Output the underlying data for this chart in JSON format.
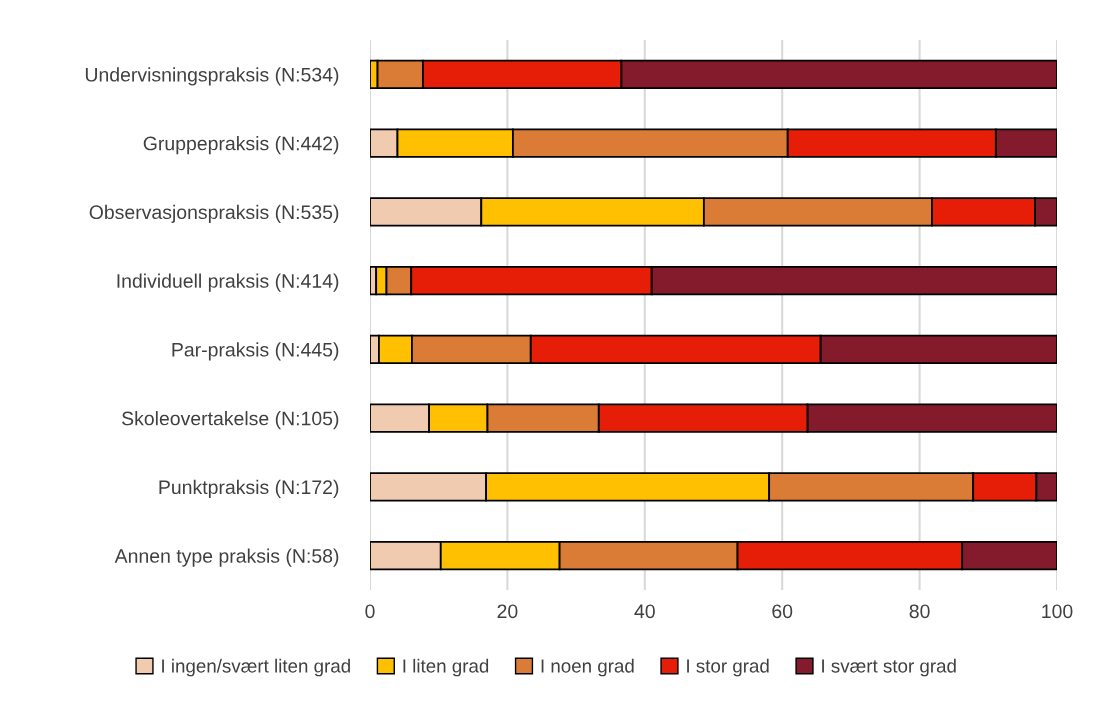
{
  "chart_data": {
    "type": "bar",
    "orientation": "horizontal",
    "stacked": true,
    "categories": [
      "Undervisningspraksis (N:534)",
      "Gruppepraksis (N:442)",
      "Observasjonspraksis (N:535)",
      "Individuell praksis (N:414)",
      "Par-praksis (N:445)",
      "Skoleovertakelse (N:105)",
      "Punktpraksis (N:172)",
      "Annen type praksis (N:58)"
    ],
    "series": [
      {
        "name": "I ingen/svært liten grad",
        "color": "#f1cbb0",
        "values": [
          0,
          4.0,
          16.2,
          0.9,
          1.3,
          8.6,
          16.9,
          10.3
        ]
      },
      {
        "name": "I liten grad",
        "color": "#fec000",
        "values": [
          1.1,
          16.8,
          32.4,
          1.5,
          4.8,
          8.5,
          41.2,
          17.3
        ]
      },
      {
        "name": "I noen grad",
        "color": "#da7b36",
        "values": [
          6.6,
          40.0,
          33.2,
          3.6,
          17.3,
          16.2,
          29.7,
          25.9
        ]
      },
      {
        "name": "I stor grad",
        "color": "#e61e07",
        "values": [
          28.9,
          30.3,
          15.0,
          35.0,
          42.2,
          30.4,
          9.2,
          32.7
        ]
      },
      {
        "name": "I svært stor grad",
        "color": "#841b2d",
        "values": [
          63.4,
          8.9,
          3.2,
          59.0,
          34.4,
          36.3,
          3.0,
          13.8
        ]
      }
    ],
    "xlim": [
      0,
      100
    ],
    "xticks": [
      0,
      20,
      40,
      60,
      80,
      100
    ],
    "grid": "x",
    "legend": "bottom"
  }
}
